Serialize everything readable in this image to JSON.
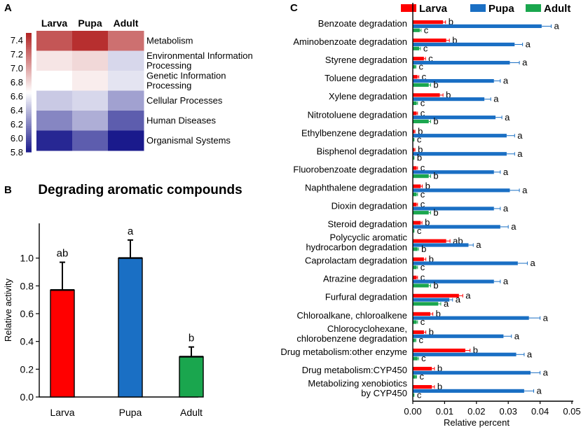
{
  "chart_data": [
    {
      "panel_label": "A",
      "type": "heatmap",
      "columns": [
        "Larva",
        "Pupa",
        "Adult"
      ],
      "rows": [
        "Metabolism",
        "Environmental Information Processing",
        "Genetic Information Processing",
        "Cellular Processes",
        "Human Diseases",
        "Organismal Systems"
      ],
      "row_labels_display": [
        [
          "Metabolism"
        ],
        [
          "Environmental Information",
          "Processing"
        ],
        [
          "Genetic Information",
          "Processing"
        ],
        [
          "Cellular Processes"
        ],
        [
          "Human Diseases"
        ],
        [
          "Organismal Systems"
        ]
      ],
      "values": [
        [
          7.3,
          7.45,
          7.2
        ],
        [
          6.75,
          6.8,
          6.5
        ],
        [
          6.65,
          6.72,
          6.55
        ],
        [
          6.45,
          6.5,
          6.3
        ],
        [
          6.2,
          6.35,
          6.05
        ],
        [
          5.85,
          6.05,
          5.8
        ]
      ],
      "colorbar": {
        "min": 5.8,
        "max": 7.5,
        "ticks": [
          "7.4",
          "7.2",
          "7.0",
          "6.8",
          "6.6",
          "6.4",
          "6.2",
          "6.0",
          "5.8"
        ],
        "tick_values": [
          7.4,
          7.2,
          7.0,
          6.8,
          6.6,
          6.4,
          6.2,
          6.0,
          5.8
        ],
        "low_color": "#1a1a8c",
        "mid_color": "#ffffff",
        "high_color": "#b22222"
      }
    },
    {
      "panel_label": "B",
      "type": "bar",
      "title": "Degrading aromatic compounds",
      "categories": [
        "Larva",
        "Pupa",
        "Adult"
      ],
      "values": [
        0.77,
        1.0,
        0.29
      ],
      "errors": [
        0.2,
        0.13,
        0.07
      ],
      "significance": [
        "ab",
        "a",
        "b"
      ],
      "colors": [
        "#ff0000",
        "#1a6fc4",
        "#1aa64e"
      ],
      "ylabel": "Relative activity",
      "xlabel": "",
      "ylim": [
        0,
        1.25
      ],
      "yticks": [
        0.0,
        0.2,
        0.4,
        0.6,
        0.8,
        1.0
      ],
      "ytick_labels": [
        "0.0",
        "0.2",
        "0.4",
        "0.6",
        "0.8",
        "1.0"
      ]
    },
    {
      "panel_label": "C",
      "type": "bar",
      "orientation": "horizontal",
      "xlabel": "Relative  percent",
      "xlim": [
        0,
        0.05
      ],
      "xticks": [
        0.0,
        0.01,
        0.02,
        0.03,
        0.04,
        0.05
      ],
      "xtick_labels": [
        "0.00",
        "0.01",
        "0.02",
        "0.03",
        "0.04",
        "0.05"
      ],
      "legend": [
        "Larva",
        "Pupa",
        "Adult"
      ],
      "colors": [
        "#ff0000",
        "#1a6fc4",
        "#1aa64e"
      ],
      "categories": [
        "Benzoate degradation",
        "Aminobenzoate degradation",
        "Styrene degradation",
        "Toluene degradation",
        "Xylene degradation",
        "Nitrotoluene degradation",
        "Ethylbenzene degradation",
        "Bisphenol degradation",
        "Fluorobenzoate degradation",
        "Naphthalene degradation",
        "Dioxin degradation",
        "Steroid degradation",
        "Polycyclic aromatic hydrocarbon degradation",
        "Caprolactam degradation",
        "Atrazine degradation",
        "Furfural degradation",
        "Chloroalkane, chloroalkene",
        "Chlorocyclohexane, chlorobenzene degradation",
        "Drug metabolism:other enzyme",
        "Drug metabolism:CYP450",
        "Metabolizing xenobiotics by CYP450"
      ],
      "category_labels_display": [
        [
          "Benzoate degradation"
        ],
        [
          "Aminobenzoate degradation"
        ],
        [
          "Styrene degradation"
        ],
        [
          "Toluene degradation"
        ],
        [
          "Xylene degradation"
        ],
        [
          "Nitrotoluene degradation"
        ],
        [
          "Ethylbenzene degradation"
        ],
        [
          "Bisphenol degradation"
        ],
        [
          "Fluorobenzoate degradation"
        ],
        [
          "Naphthalene degradation"
        ],
        [
          "Dioxin degradation"
        ],
        [
          "Steroid degradation"
        ],
        [
          "Polycyclic aromatic",
          "hydrocarbon degradation"
        ],
        [
          "Caprolactam degradation"
        ],
        [
          "Atrazine degradation"
        ],
        [
          "Furfural degradation"
        ],
        [
          "Chloroalkane, chloroalkene"
        ],
        [
          "Chlorocyclohexane,",
          "chlorobenzene degradation"
        ],
        [
          "Drug metabolism:other enzyme"
        ],
        [
          "Drug metabolism:CYP450"
        ],
        [
          "Metabolizing xenobiotics",
          "by CYP450"
        ]
      ],
      "series": [
        {
          "name": "Larva",
          "values": [
            0.0095,
            0.0105,
            0.0035,
            0.0015,
            0.0085,
            0.0012,
            0.0005,
            0.0005,
            0.0012,
            0.0025,
            0.0012,
            0.0025,
            0.0105,
            0.0035,
            0.0012,
            0.0145,
            0.0055,
            0.0035,
            0.0165,
            0.006,
            0.006
          ],
          "errors": [
            0.0008,
            0.001,
            0.0005,
            0.0004,
            0.001,
            0.0003,
            0.0002,
            0.0002,
            0.0003,
            0.0005,
            0.0003,
            0.0004,
            0.0012,
            0.0006,
            0.0003,
            0.0012,
            0.0008,
            0.0006,
            0.0015,
            0.0008,
            0.0008
          ],
          "labels": [
            "b",
            "b",
            "c",
            "c",
            "b",
            "c",
            "b",
            "b",
            "c",
            "b",
            "c",
            "b",
            "ab",
            "b",
            "c",
            "a",
            "b",
            "b",
            "b",
            "b",
            "b"
          ]
        },
        {
          "name": "Pupa",
          "values": [
            0.0405,
            0.032,
            0.0305,
            0.0255,
            0.0225,
            0.026,
            0.0295,
            0.0295,
            0.0255,
            0.0305,
            0.0255,
            0.0275,
            0.0175,
            0.033,
            0.0255,
            0.0115,
            0.0365,
            0.0285,
            0.0325,
            0.037,
            0.035
          ],
          "errors": [
            0.003,
            0.0025,
            0.003,
            0.002,
            0.002,
            0.002,
            0.0025,
            0.0025,
            0.002,
            0.003,
            0.002,
            0.0025,
            0.0015,
            0.003,
            0.002,
            0.001,
            0.0035,
            0.0025,
            0.0025,
            0.003,
            0.003
          ],
          "labels": [
            "a",
            "a",
            "a",
            "a",
            "a",
            "a",
            "a",
            "a",
            "a",
            "a",
            "a",
            "a",
            "a",
            "a",
            "a",
            "a",
            "a",
            "a",
            "a",
            "a",
            "a"
          ]
        },
        {
          "name": "Adult",
          "values": [
            0.0022,
            0.002,
            0.0008,
            0.005,
            0.0012,
            0.005,
            0.0003,
            0.0003,
            0.005,
            0.0012,
            0.005,
            0.0003,
            0.0015,
            0.0012,
            0.005,
            0.008,
            0.0012,
            0.0008,
            0.0015,
            0.001,
            0.0003
          ],
          "errors": [
            0.0004,
            0.0004,
            0.0002,
            0.0006,
            0.0003,
            0.0006,
            0.0001,
            0.0001,
            0.0006,
            0.0003,
            0.0006,
            0.0001,
            0.0003,
            0.0003,
            0.0006,
            0.0008,
            0.0003,
            0.0002,
            0.0003,
            0.0002,
            0.0001
          ],
          "labels": [
            "c",
            "c",
            "c",
            "b",
            "c",
            "b",
            "c",
            "b",
            "b",
            "c",
            "b",
            "c",
            "b",
            "c",
            "b",
            "a",
            "c",
            "c",
            "c",
            "c",
            "c"
          ]
        }
      ]
    }
  ]
}
